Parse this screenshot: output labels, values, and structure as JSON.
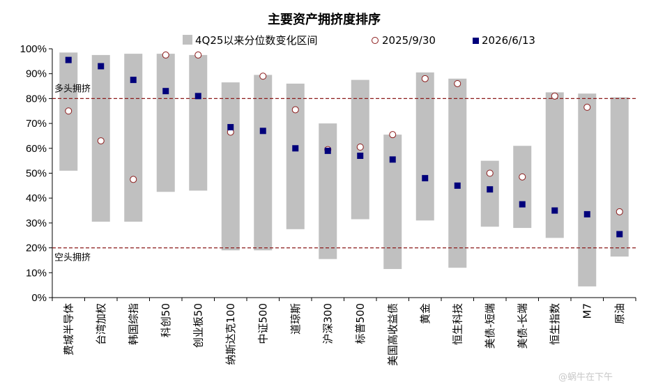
{
  "chart_data": {
    "type": "range-dot",
    "title": "主要资产拥挤度排序",
    "ylim": [
      0,
      100
    ],
    "yticks": [
      "0%",
      "10%",
      "20%",
      "30%",
      "40%",
      "50%",
      "60%",
      "70%",
      "80%",
      "90%",
      "100%"
    ],
    "categories": [
      "费城半导体",
      "台湾加权",
      "韩国综指",
      "科创50",
      "创业板50",
      "纳斯达克100",
      "中证500",
      "道琼斯",
      "沪深300",
      "标普500",
      "美国高收益债",
      "黄金",
      "恒生科技",
      "美债-短端",
      "美债-长端",
      "恒生指数",
      "M7",
      "原油"
    ],
    "range": {
      "name": "4Q25以来分位数变化区间",
      "color": "#c0c0c0",
      "low": [
        51,
        30.5,
        30.5,
        42.5,
        43,
        19,
        19,
        27.5,
        15.5,
        31.5,
        11.5,
        31,
        12,
        28.5,
        28,
        24,
        4.5,
        16.5
      ],
      "high": [
        98.5,
        97.5,
        98,
        98,
        97.5,
        86.5,
        89.5,
        86,
        70,
        87.5,
        65.5,
        90.5,
        88,
        55,
        61,
        82.5,
        82,
        80.5
      ]
    },
    "series": [
      {
        "name": "2025/9/30",
        "marker": "circle",
        "color": "#8b1a1a",
        "values": [
          75,
          63,
          47.5,
          97.5,
          97.5,
          66.5,
          89,
          75.5,
          59.5,
          60.5,
          65.5,
          88,
          86,
          50,
          48.5,
          81,
          76.5,
          34.5
        ]
      },
      {
        "name": "2026/6/13",
        "marker": "square",
        "color": "#00007b",
        "values": [
          95.5,
          93,
          87.5,
          83,
          81,
          68.5,
          67,
          60,
          59,
          57,
          55.5,
          48,
          45,
          43.5,
          37.5,
          35,
          33.5,
          25.5
        ]
      }
    ],
    "ref_lines": [
      {
        "value": 80,
        "label": "多头拥挤",
        "color": "#8b1a1a"
      },
      {
        "value": 20,
        "label": "空头拥挤",
        "color": "#8b1a1a"
      }
    ]
  },
  "watermark": "@蜗牛在下午"
}
